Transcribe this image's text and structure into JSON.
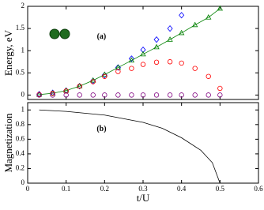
{
  "chart_data": [
    {
      "type": "scatter",
      "annotation": "(a)",
      "ylabel": "Energy, eV",
      "x": [
        0.03,
        0.065,
        0.1,
        0.135,
        0.17,
        0.2,
        0.235,
        0.27,
        0.3,
        0.335,
        0.37,
        0.4,
        0.435,
        0.47,
        0.5
      ],
      "xlim": [
        0,
        0.6
      ],
      "xticks": [
        0,
        0.1,
        0.2,
        0.3,
        0.4,
        0.5,
        0.6
      ],
      "ylim": [
        -0.1,
        2.0
      ],
      "yticks": [
        0,
        0.5,
        1,
        1.5,
        2
      ],
      "series": [
        {
          "marker": "diamond",
          "color": "#0000ff",
          "values": [
            0.02,
            0.05,
            0.1,
            0.2,
            0.32,
            0.45,
            0.62,
            0.82,
            1.02,
            1.25,
            1.5,
            1.8,
            null,
            null,
            null
          ]
        },
        {
          "marker": "triangle",
          "line": true,
          "color": "#008000",
          "values": [
            0.01,
            0.04,
            0.1,
            0.2,
            0.33,
            0.46,
            0.62,
            0.78,
            0.92,
            1.08,
            1.25,
            1.4,
            1.58,
            1.75,
            1.95
          ]
        },
        {
          "marker": "circle",
          "color": "#ff0000",
          "values": [
            0.01,
            0.04,
            0.09,
            0.2,
            0.3,
            0.42,
            0.53,
            0.6,
            0.69,
            0.74,
            0.75,
            0.72,
            0.6,
            0.42,
            0.15
          ]
        },
        {
          "marker": "circle",
          "color": "#800080",
          "values": [
            0,
            0,
            0,
            0,
            0,
            0,
            0,
            0,
            0,
            0,
            0,
            0,
            0,
            0,
            0
          ]
        }
      ]
    },
    {
      "type": "line",
      "annotation": "(b)",
      "ylabel": "Magnetization",
      "xlabel": "t/U",
      "x": [
        0.03,
        0.1,
        0.2,
        0.3,
        0.35,
        0.4,
        0.45,
        0.48,
        0.5
      ],
      "xlim": [
        0,
        0.6
      ],
      "xticks": [
        0,
        0.1,
        0.2,
        0.3,
        0.4,
        0.5,
        0.6
      ],
      "ylim": [
        0,
        1.1
      ],
      "yticks": [
        0,
        0.2,
        0.4,
        0.6,
        0.8,
        1
      ],
      "series": [
        {
          "marker": "none",
          "line": true,
          "color": "#000000",
          "values": [
            1.0,
            0.98,
            0.93,
            0.83,
            0.75,
            0.62,
            0.45,
            0.28,
            0
          ]
        }
      ]
    }
  ]
}
